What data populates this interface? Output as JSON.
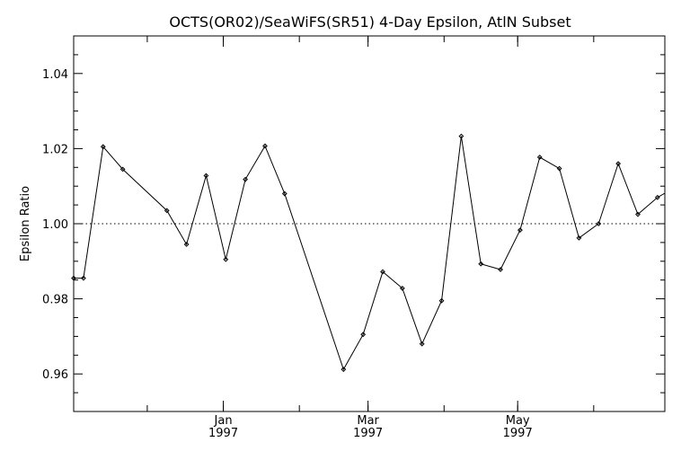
{
  "chart_data": {
    "type": "line",
    "title": "OCTS(OR02)/SeaWiFS(SR51) 4-Day Epsilon, AtlN Subset",
    "xlabel": "",
    "ylabel": "Epsilon Ratio",
    "xlim": [
      "1996-11-01",
      "1997-06-30"
    ],
    "ylim": [
      0.95,
      1.05
    ],
    "y_ticks": [
      0.96,
      0.98,
      1.0,
      1.02,
      1.04
    ],
    "y_tick_labels": [
      "0.96",
      "0.98",
      "1.00",
      "1.02",
      "1.04"
    ],
    "x_tick_dates": [
      "1997-01-01",
      "1997-03-01",
      "1997-05-01"
    ],
    "x_tick_labels": [
      {
        "month": "Jan",
        "year": "1997"
      },
      {
        "month": "Mar",
        "year": "1997"
      },
      {
        "month": "May",
        "year": "1997"
      }
    ],
    "reference_line": {
      "y": 1.0,
      "style": "dotted"
    },
    "grid": false,
    "series": [
      {
        "marker": "diamond",
        "x": [
          "1996-11-01",
          "1996-11-05",
          "1996-11-13",
          "1996-11-21",
          "1996-12-09",
          "1996-12-17",
          "1996-12-25",
          "1997-01-02",
          "1997-01-10",
          "1997-01-18",
          "1997-01-26",
          "1997-02-19",
          "1997-02-27",
          "1997-03-07",
          "1997-03-15",
          "1997-03-23",
          "1997-03-31",
          "1997-04-08",
          "1997-04-16",
          "1997-04-24",
          "1997-05-02",
          "1997-05-10",
          "1997-05-18",
          "1997-05-26",
          "1997-06-03",
          "1997-06-11",
          "1997-06-19",
          "1997-06-27",
          "1997-07-01"
        ],
        "y": [
          0.9855,
          0.9855,
          1.0205,
          1.0145,
          1.0035,
          0.9945,
          1.0128,
          0.9905,
          1.0118,
          1.0207,
          1.008,
          0.9612,
          0.9705,
          0.9872,
          0.9828,
          0.968,
          0.9795,
          1.0233,
          0.9893,
          0.9878,
          0.9983,
          1.0177,
          1.0147,
          0.9962,
          1.0,
          1.016,
          1.0025,
          1.007,
          1.0085
        ]
      }
    ]
  }
}
